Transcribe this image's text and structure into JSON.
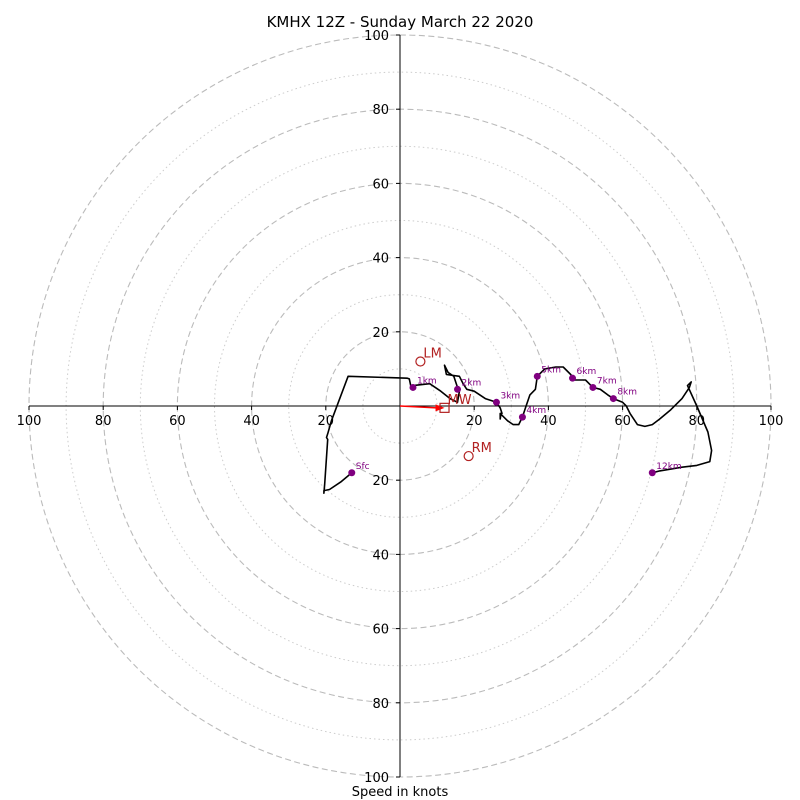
{
  "chart_data": {
    "type": "line",
    "title": "KMHX 12Z - Sunday March 22 2020",
    "xlabel": "Speed in knots",
    "ylabel": "",
    "xlim": [
      -100,
      100
    ],
    "ylim": [
      -100,
      100
    ],
    "rings_major": [
      20,
      40,
      60,
      80,
      100
    ],
    "rings_minor": [
      10,
      30,
      50,
      70,
      90
    ],
    "x_ticks": [
      {
        "value": -100,
        "label": "100"
      },
      {
        "value": -80,
        "label": "80"
      },
      {
        "value": -60,
        "label": "60"
      },
      {
        "value": -40,
        "label": "40"
      },
      {
        "value": -20,
        "label": "20"
      },
      {
        "value": 20,
        "label": "20"
      },
      {
        "value": 40,
        "label": "40"
      },
      {
        "value": 60,
        "label": "60"
      },
      {
        "value": 80,
        "label": "80"
      },
      {
        "value": 100,
        "label": "100"
      }
    ],
    "y_ticks": [
      {
        "value": 100,
        "label": "100"
      },
      {
        "value": 80,
        "label": "80"
      },
      {
        "value": 60,
        "label": "60"
      },
      {
        "value": 40,
        "label": "40"
      },
      {
        "value": 20,
        "label": "20"
      },
      {
        "value": -20,
        "label": "20"
      },
      {
        "value": -40,
        "label": "40"
      },
      {
        "value": -60,
        "label": "60"
      },
      {
        "value": -80,
        "label": "80"
      },
      {
        "value": -100,
        "label": "100"
      }
    ],
    "hodograph": [
      [
        -13,
        -18
      ],
      [
        -16,
        -20.5
      ],
      [
        -19,
        -22.5
      ],
      [
        -20.5,
        -22.8
      ],
      [
        -20.5,
        -23.5
      ],
      [
        -20.3,
        -21
      ],
      [
        -19.5,
        -9
      ],
      [
        -19.8,
        -8.5
      ],
      [
        -19.5,
        -7.5
      ],
      [
        -18.5,
        -4
      ],
      [
        -14,
        8
      ],
      [
        2,
        7.5
      ],
      [
        2.5,
        7.3
      ],
      [
        3,
        5
      ],
      [
        3.5,
        5.5
      ],
      [
        8,
        6
      ],
      [
        11,
        4
      ],
      [
        13.5,
        2
      ],
      [
        15.5,
        1
      ],
      [
        16,
        4
      ],
      [
        15.5,
        5
      ],
      [
        14.5,
        8
      ],
      [
        13,
        9
      ],
      [
        12,
        11
      ],
      [
        12.5,
        8.5
      ],
      [
        16,
        8
      ],
      [
        17,
        6
      ],
      [
        18,
        4.5
      ],
      [
        20,
        4
      ],
      [
        23,
        2
      ],
      [
        26,
        1
      ],
      [
        27,
        -0.5
      ],
      [
        27.5,
        -2
      ],
      [
        27,
        -2
      ],
      [
        27,
        -3.5
      ],
      [
        27.2,
        -2.2
      ],
      [
        29,
        -4
      ],
      [
        30.5,
        -5
      ],
      [
        32,
        -5
      ],
      [
        33,
        -3
      ],
      [
        34,
        0
      ],
      [
        35,
        3
      ],
      [
        36.5,
        4.5
      ],
      [
        37,
        8
      ],
      [
        39,
        10
      ],
      [
        42,
        10.5
      ],
      [
        44,
        10.5
      ],
      [
        46,
        8.5
      ],
      [
        47,
        7
      ],
      [
        48,
        7
      ],
      [
        50,
        7
      ],
      [
        52,
        5
      ],
      [
        54,
        4.5
      ],
      [
        56,
        3
      ],
      [
        57.5,
        2
      ],
      [
        60,
        1
      ],
      [
        61,
        0
      ],
      [
        62,
        -2
      ],
      [
        64,
        -5
      ],
      [
        66,
        -5.5
      ],
      [
        68,
        -5
      ],
      [
        70,
        -3.5
      ],
      [
        73,
        -1
      ],
      [
        76,
        2
      ],
      [
        78,
        5
      ],
      [
        78.5,
        6.5
      ],
      [
        77.5,
        5.5
      ],
      [
        80,
        0
      ],
      [
        83,
        -7
      ],
      [
        84,
        -12
      ],
      [
        83.5,
        -15
      ],
      [
        80,
        -16
      ],
      [
        76,
        -16.5
      ],
      [
        70,
        -17.5
      ],
      [
        68,
        -18
      ]
    ],
    "height_markers": [
      {
        "label": "Sfc",
        "x": -13,
        "y": -18
      },
      {
        "label": "1km",
        "x": 3.5,
        "y": 5
      },
      {
        "label": "2km",
        "x": 15.5,
        "y": 4.5
      },
      {
        "label": "3km",
        "x": 26,
        "y": 1
      },
      {
        "label": "4km",
        "x": 33,
        "y": -3
      },
      {
        "label": "5km",
        "x": 37,
        "y": 8
      },
      {
        "label": "6km",
        "x": 46.5,
        "y": 7.5
      },
      {
        "label": "7km",
        "x": 52,
        "y": 5
      },
      {
        "label": "8km",
        "x": 57.5,
        "y": 2
      },
      {
        "label": "12km",
        "x": 68,
        "y": -18
      }
    ],
    "storm_motion": [
      {
        "label": "LM",
        "x": 5.5,
        "y": 12,
        "marker": "circle"
      },
      {
        "label": "RM",
        "x": 18.5,
        "y": -13.5,
        "marker": "circle"
      },
      {
        "label": "MW",
        "x": 12,
        "y": -0.5,
        "marker": "square"
      }
    ],
    "mean_wind_arrow": {
      "from": [
        0,
        0
      ],
      "to": [
        12,
        -0.5
      ]
    },
    "colors": {
      "hodograph": "#000000",
      "height_marker": "#800080",
      "storm_motion": "#b22222",
      "mean_wind_arrow": "#ff0000",
      "ring_major": "#bbbbbb",
      "ring_minor": "#cccccc"
    }
  }
}
